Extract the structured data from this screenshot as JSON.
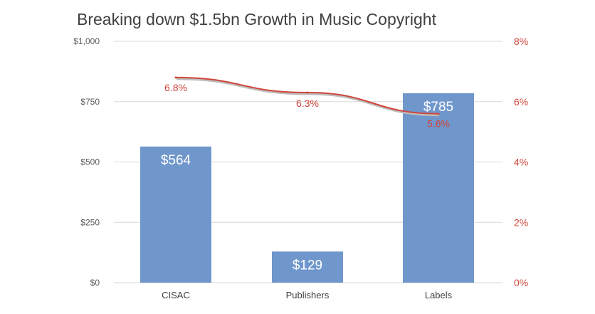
{
  "chart_data": {
    "type": "bar",
    "title": "Breaking down $1.5bn Growth in Music Copyright",
    "categories": [
      "CISAC",
      "Publishers",
      "Labels"
    ],
    "series": [
      {
        "type": "bar",
        "axis": "left",
        "values": [
          564,
          129,
          785
        ],
        "labels": [
          "$564",
          "$129",
          "$785"
        ],
        "color": "#7097cc"
      },
      {
        "type": "line",
        "axis": "right",
        "values": [
          6.8,
          6.3,
          5.6
        ],
        "labels": [
          "6.8%",
          "6.3%",
          "5.6%"
        ],
        "color": "#d0453a"
      }
    ],
    "y_left": {
      "range": [
        0,
        1000
      ],
      "ticks": [
        0,
        250,
        500,
        750,
        1000
      ],
      "tick_labels": [
        "$0",
        "$250",
        "$500",
        "$750",
        "$1,000"
      ]
    },
    "y_right": {
      "range": [
        0,
        8
      ],
      "ticks": [
        0,
        2,
        4,
        6,
        8
      ],
      "tick_labels": [
        "0%",
        "2%",
        "4%",
        "6%",
        "8%"
      ],
      "color": "#d0453a"
    },
    "grid": true,
    "legend": "none"
  }
}
